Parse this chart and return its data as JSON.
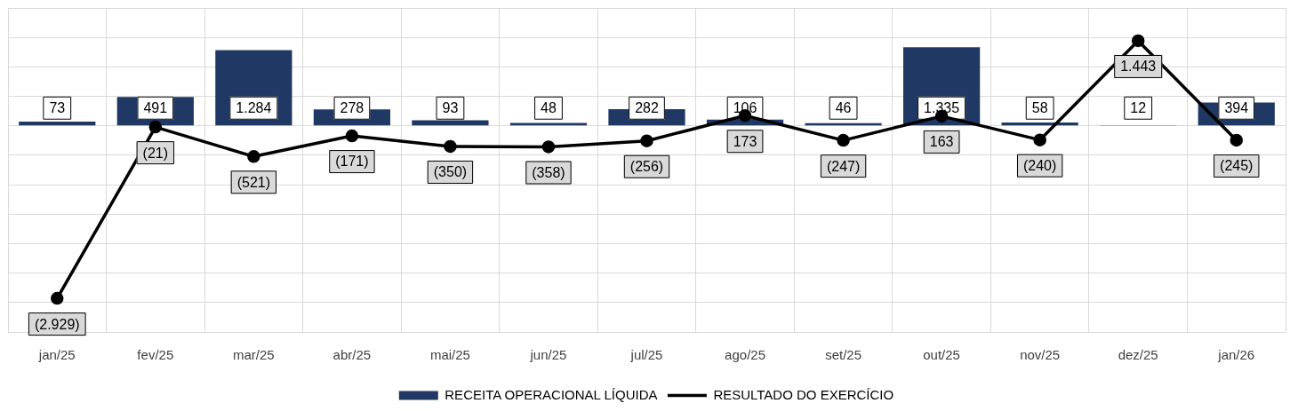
{
  "chart_data": {
    "type": "bar",
    "categories": [
      "jan/25",
      "fev/25",
      "mar/25",
      "abr/25",
      "mai/25",
      "jun/25",
      "jul/25",
      "ago/25",
      "set/25",
      "out/25",
      "nov/25",
      "dez/25",
      "jan/26"
    ],
    "series": [
      {
        "name": "RECEITA OPERACIONAL LÍQUIDA",
        "color": "#1f3864",
        "values": [
          73,
          491,
          1284,
          278,
          93,
          48,
          282,
          106,
          46,
          1335,
          58,
          12,
          394
        ],
        "value_labels": [
          "73",
          "491",
          "1.284",
          "278",
          "93",
          "48",
          "282",
          "106",
          "46",
          "1.335",
          "58",
          "12",
          "394"
        ]
      },
      {
        "name": "RESULTADO DO EXERCÍCIO",
        "type": "line",
        "color": "#000000",
        "values": [
          -2929,
          -21,
          -521,
          -171,
          -350,
          -358,
          -256,
          173,
          -247,
          163,
          -240,
          1443,
          -245
        ],
        "value_labels": [
          "(2.929)",
          "(21)",
          "(521)",
          "(171)",
          "(350)",
          "(358)",
          "(256)",
          "173",
          "(247)",
          "163",
          "(240)",
          "1.443",
          "(245)"
        ]
      }
    ],
    "ylim": [
      -3500,
      2000
    ],
    "yticks": [
      {
        "value": -3500,
        "label": null
      },
      {
        "value": -3000,
        "label": null
      },
      {
        "value": -2500,
        "label": null
      },
      {
        "value": -2000,
        "label": null
      },
      {
        "value": -1500,
        "label": null
      },
      {
        "value": -1000,
        "label": null
      },
      {
        "value": -500,
        "label": null
      },
      {
        "value": 0,
        "label": null
      },
      {
        "value": 500,
        "label": null
      },
      {
        "value": 1000,
        "label": null
      },
      {
        "value": 1500,
        "label": null
      },
      {
        "value": 2000,
        "label": null
      }
    ],
    "tick_labels": "x",
    "grid": true,
    "legend": "bottom",
    "marker": "circle",
    "line_style": "solid"
  }
}
